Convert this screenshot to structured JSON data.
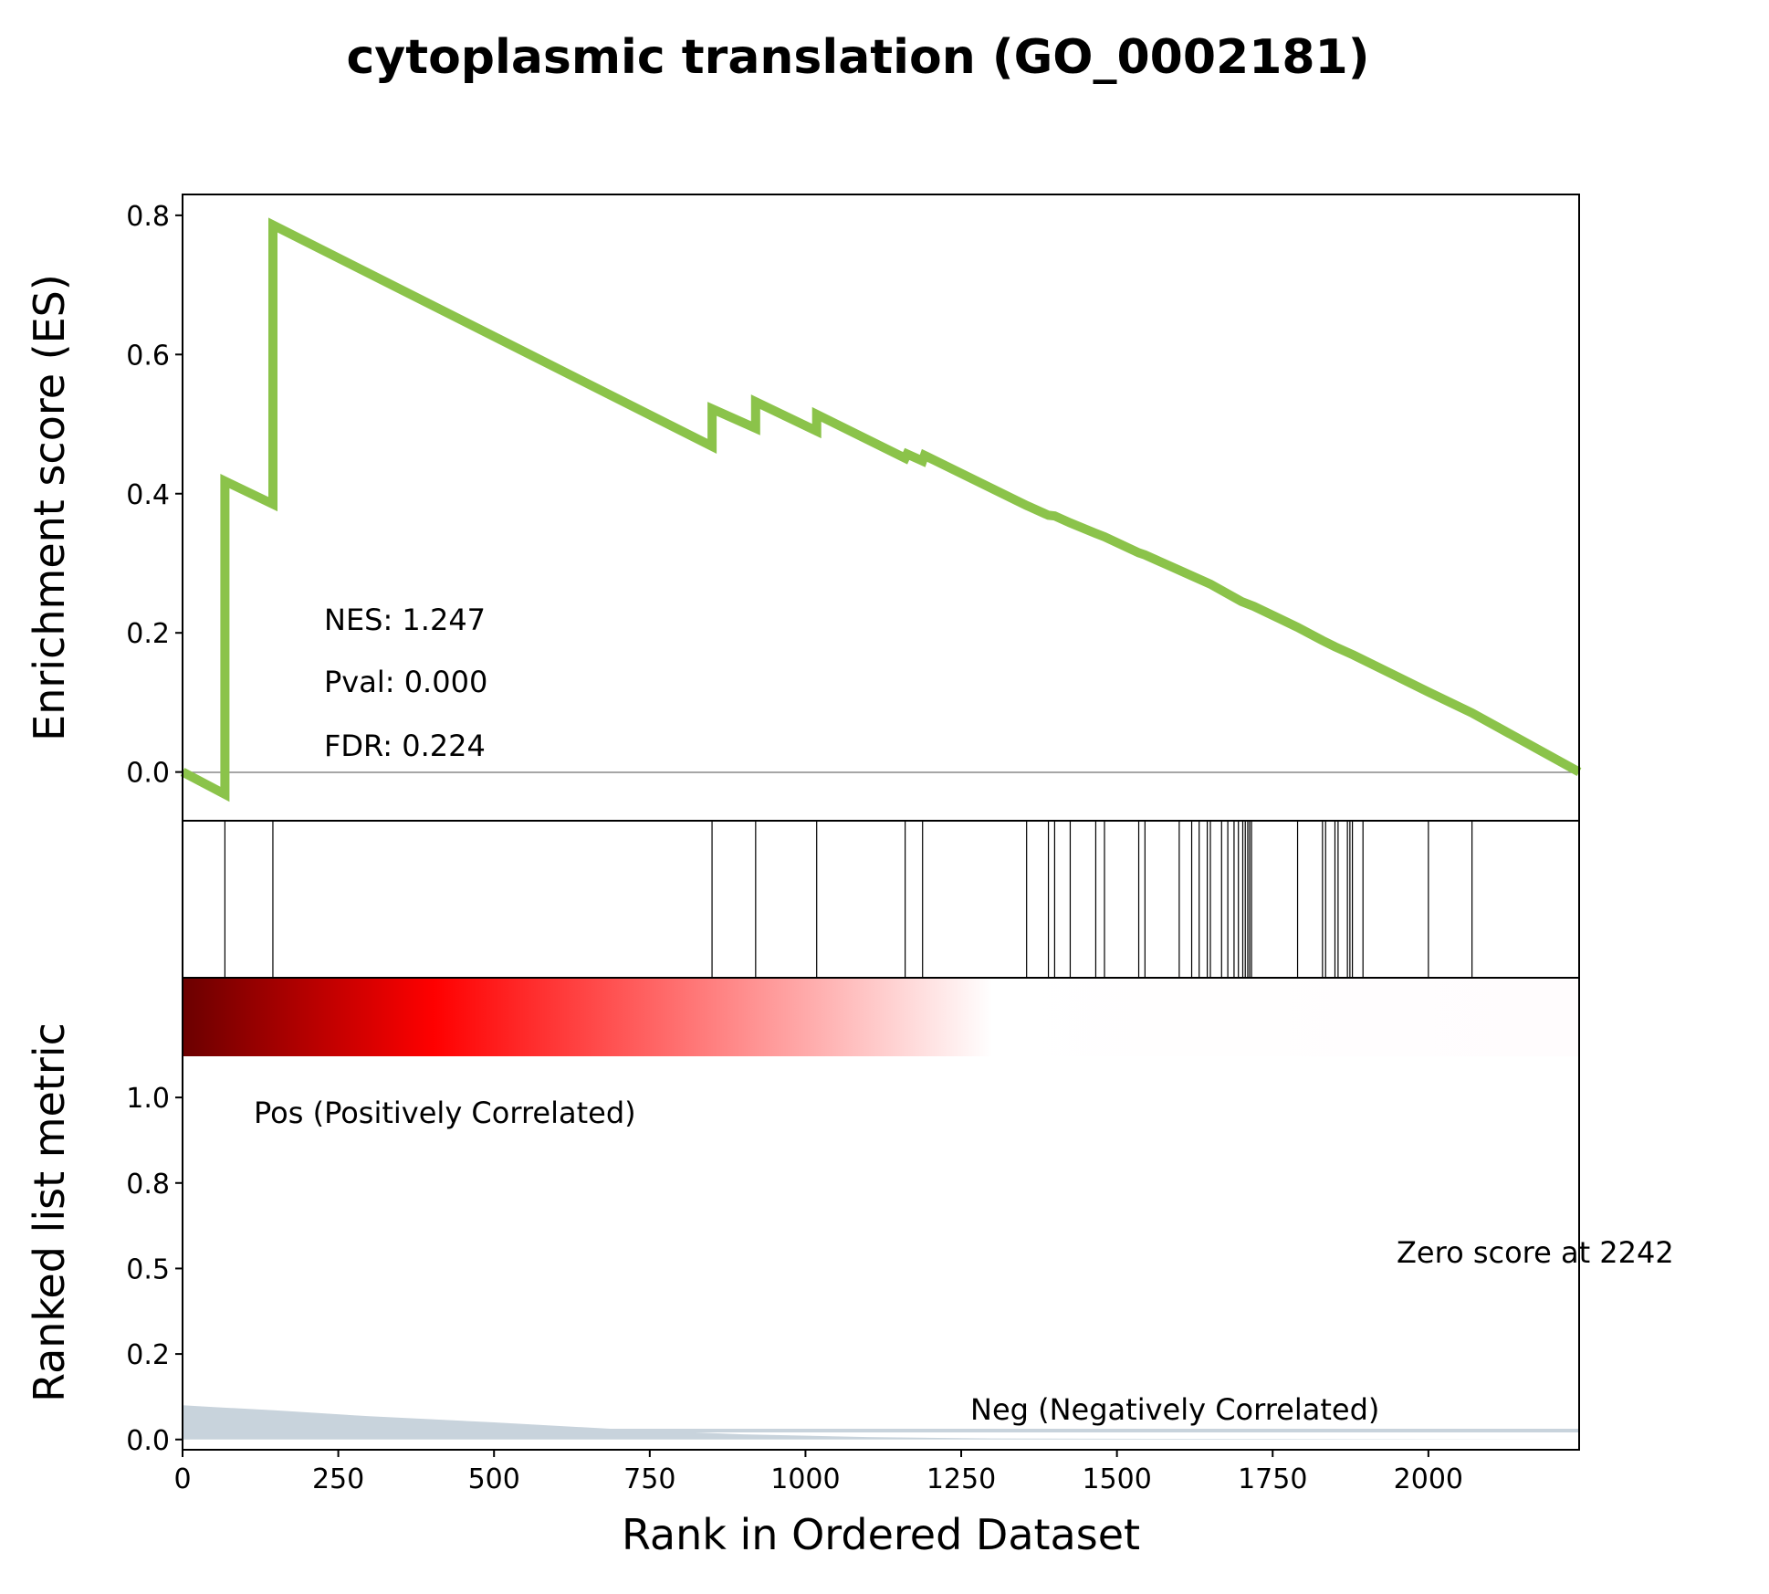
{
  "chart_data": {
    "type": "line",
    "title": "cytoplasmic translation (GO_0002181)",
    "xlabel": "Rank in Ordered Dataset",
    "ylabel_top": "Enrichment score (ES)",
    "ylabel_bottom": "Ranked list metric",
    "xlim": [
      0,
      2242
    ],
    "xticks": [
      0,
      250,
      500,
      750,
      1000,
      1250,
      1500,
      1750,
      2000
    ],
    "es_ylim": [
      -0.07,
      0.83
    ],
    "es_yticks": [
      "0.0",
      "0.2",
      "0.4",
      "0.6",
      "0.8"
    ],
    "es_ytick_values": [
      0.0,
      0.2,
      0.4,
      0.6,
      0.8
    ],
    "metric_ylim": [
      -0.03,
      1.35
    ],
    "metric_yticks": [
      "0.0",
      "0.2",
      "0.5",
      "0.8",
      "1.0"
    ],
    "metric_ytick_values": [
      0.0,
      0.25,
      0.5,
      0.75,
      1.0
    ],
    "line_color": "#8bc34a",
    "es_curve": {
      "x": [
        0,
        68,
        68,
        145,
        145,
        850,
        850,
        920,
        920,
        1018,
        1018,
        1160,
        1163,
        1188,
        1191,
        1355,
        1360,
        1390,
        1400,
        1425,
        1466,
        1480,
        1535,
        1545,
        1600,
        1625,
        1650,
        1700,
        1720,
        1790,
        1830,
        1850,
        1870,
        1880,
        2000,
        2070,
        2242
      ],
      "y": [
        0.0,
        -0.032,
        0.418,
        0.385,
        0.786,
        0.468,
        0.522,
        0.494,
        0.532,
        0.49,
        0.514,
        0.451,
        0.457,
        0.447,
        0.455,
        0.383,
        0.381,
        0.369,
        0.368,
        0.358,
        0.343,
        0.338,
        0.315,
        0.312,
        0.29,
        0.28,
        0.27,
        0.245,
        0.238,
        0.208,
        0.189,
        0.18,
        0.172,
        0.168,
        0.115,
        0.085,
        0.0
      ]
    },
    "hits": [
      68,
      145,
      850,
      920,
      1018,
      1160,
      1188,
      1355,
      1390,
      1400,
      1425,
      1466,
      1480,
      1535,
      1545,
      1600,
      1620,
      1632,
      1645,
      1650,
      1668,
      1678,
      1688,
      1695,
      1702,
      1706,
      1710,
      1713,
      1716,
      1790,
      1830,
      1835,
      1850,
      1855,
      1870,
      1874,
      1878,
      1895,
      2000,
      2070
    ],
    "metric_area": {
      "x": [
        0,
        50,
        150,
        300,
        500,
        700,
        900,
        1100,
        1300,
        2242
      ],
      "y": [
        0.1,
        0.095,
        0.085,
        0.068,
        0.05,
        0.03,
        0.015,
        0.007,
        0.003,
        0.0
      ]
    },
    "metric_area_color": "#c8d3dc",
    "gradient_colors": [
      "#6b0000",
      "#ff0000",
      "#ffffff",
      "#fffcfd"
    ],
    "stats": {
      "nes": "NES: 1.247",
      "pval": "Pval: 0.000",
      "fdr": "FDR: 0.224"
    },
    "pos_label": "Pos (Positively Correlated)",
    "neg_label": "Neg (Negatively Correlated)",
    "zero_label": "Zero score at 2242",
    "pos_color": "#ff0000",
    "neg_color": "#0000ff"
  }
}
